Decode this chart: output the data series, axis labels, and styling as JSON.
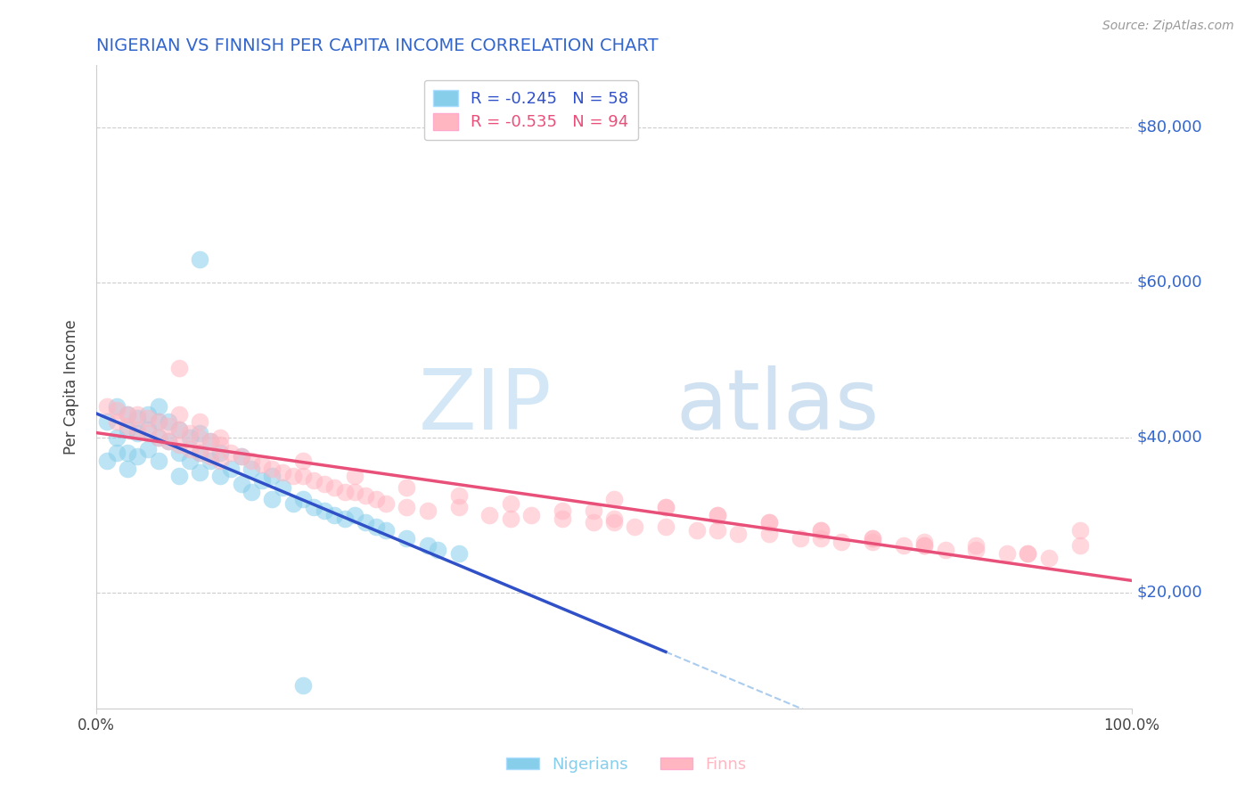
{
  "title": "NIGERIAN VS FINNISH PER CAPITA INCOME CORRELATION CHART",
  "source": "Source: ZipAtlas.com",
  "ylabel": "Per Capita Income",
  "ytick_labels": [
    "$20,000",
    "$40,000",
    "$60,000",
    "$80,000"
  ],
  "ytick_values": [
    20000,
    40000,
    60000,
    80000
  ],
  "ymin": 5000,
  "ymax": 88000,
  "xmin": 0.0,
  "xmax": 1.0,
  "nigerian_color": "#87CEEB",
  "finn_color": "#FFB6C1",
  "nigerian_line_color": "#3050C8",
  "finn_line_color": "#E8507A",
  "dashed_line_color": "#AACCEE",
  "title_color": "#3366CC",
  "ytick_color": "#3366CC",
  "legend_R1": "R = -0.245",
  "legend_N1": "N = 58",
  "legend_R2": "R = -0.535",
  "legend_N2": "N = 94",
  "legend_color1": "#3050C8",
  "legend_color2": "#E8507A",
  "legend_bg1": "#87CEEB",
  "legend_bg2": "#FFB6C1",
  "watermark_zip": "ZIP",
  "watermark_atlas": "atlas",
  "nigerian_x": [
    0.01,
    0.01,
    0.02,
    0.02,
    0.02,
    0.03,
    0.03,
    0.03,
    0.03,
    0.04,
    0.04,
    0.04,
    0.05,
    0.05,
    0.05,
    0.06,
    0.06,
    0.06,
    0.06,
    0.07,
    0.07,
    0.08,
    0.08,
    0.08,
    0.09,
    0.09,
    0.1,
    0.1,
    0.1,
    0.11,
    0.11,
    0.12,
    0.12,
    0.13,
    0.14,
    0.14,
    0.15,
    0.15,
    0.16,
    0.17,
    0.17,
    0.18,
    0.19,
    0.2,
    0.21,
    0.22,
    0.23,
    0.24,
    0.25,
    0.26,
    0.27,
    0.28,
    0.3,
    0.32,
    0.33,
    0.35,
    0.1,
    0.2
  ],
  "nigerian_y": [
    42000,
    37000,
    44000,
    40000,
    38000,
    43000,
    41000,
    38000,
    36000,
    42500,
    40500,
    37500,
    43000,
    41000,
    38500,
    44000,
    42000,
    40000,
    37000,
    42000,
    39500,
    41000,
    38000,
    35000,
    40000,
    37000,
    40500,
    38000,
    35500,
    39500,
    37000,
    38000,
    35000,
    36000,
    37500,
    34000,
    36000,
    33000,
    34500,
    35000,
    32000,
    33500,
    31500,
    32000,
    31000,
    30500,
    30000,
    29500,
    30000,
    29000,
    28500,
    28000,
    27000,
    26000,
    25500,
    25000,
    63000,
    8000
  ],
  "finn_x": [
    0.01,
    0.02,
    0.02,
    0.03,
    0.03,
    0.04,
    0.04,
    0.05,
    0.05,
    0.06,
    0.06,
    0.07,
    0.07,
    0.08,
    0.08,
    0.09,
    0.09,
    0.1,
    0.1,
    0.11,
    0.11,
    0.12,
    0.12,
    0.13,
    0.14,
    0.15,
    0.16,
    0.17,
    0.18,
    0.19,
    0.2,
    0.21,
    0.22,
    0.23,
    0.24,
    0.25,
    0.26,
    0.27,
    0.28,
    0.3,
    0.32,
    0.35,
    0.38,
    0.4,
    0.42,
    0.45,
    0.48,
    0.5,
    0.52,
    0.55,
    0.58,
    0.6,
    0.62,
    0.65,
    0.68,
    0.7,
    0.72,
    0.75,
    0.78,
    0.8,
    0.82,
    0.85,
    0.88,
    0.9,
    0.92,
    0.95,
    0.48,
    0.5,
    0.55,
    0.6,
    0.65,
    0.7,
    0.75,
    0.8,
    0.85,
    0.9,
    0.5,
    0.55,
    0.6,
    0.65,
    0.7,
    0.75,
    0.8,
    0.3,
    0.35,
    0.4,
    0.45,
    0.2,
    0.25,
    0.08,
    0.95,
    0.08,
    0.1,
    0.12
  ],
  "finn_y": [
    44000,
    43500,
    42000,
    43000,
    41500,
    43000,
    41000,
    42500,
    40500,
    42000,
    40000,
    41500,
    39500,
    41000,
    39000,
    40500,
    38500,
    40000,
    38000,
    39500,
    37500,
    39000,
    37000,
    38000,
    37500,
    37000,
    36500,
    36000,
    35500,
    35000,
    35000,
    34500,
    34000,
    33500,
    33000,
    33000,
    32500,
    32000,
    31500,
    31000,
    30500,
    31000,
    30000,
    29500,
    30000,
    29500,
    29000,
    29000,
    28500,
    28500,
    28000,
    28000,
    27500,
    27500,
    27000,
    27000,
    26500,
    26500,
    26000,
    26000,
    25500,
    25500,
    25000,
    25000,
    24500,
    28000,
    30500,
    29500,
    31000,
    30000,
    29000,
    28000,
    27000,
    26500,
    26000,
    25000,
    32000,
    31000,
    30000,
    29000,
    28000,
    27000,
    26000,
    33500,
    32500,
    31500,
    30500,
    37000,
    35000,
    49000,
    26000,
    43000,
    42000,
    40000
  ]
}
